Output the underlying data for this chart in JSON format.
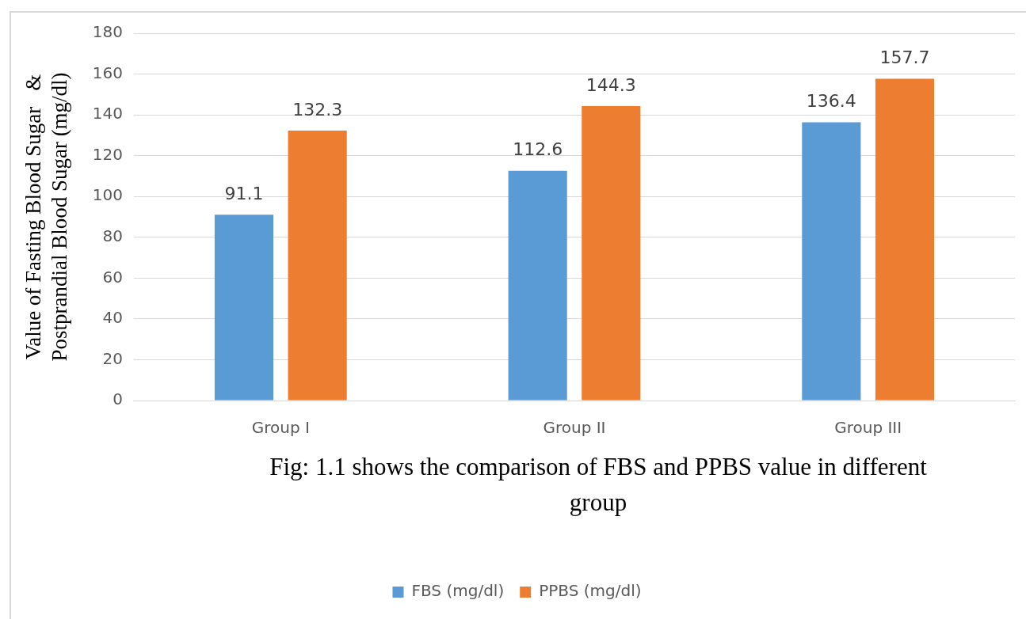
{
  "chart_data": {
    "type": "bar",
    "ylabel": "Value of Fasting Blood Sugar   &\nPostprandial Blood Sugar (mg/dl)",
    "categories": [
      "Group I",
      "Group II",
      "Group III"
    ],
    "series": [
      {
        "name": "FBS (mg/dl)",
        "color": "#5b9bd5",
        "values": [
          91.1,
          112.6,
          136.4
        ]
      },
      {
        "name": "PPBS (mg/dl)",
        "color": "#ed7d31",
        "values": [
          132.3,
          144.3,
          157.7
        ]
      }
    ],
    "ylim": [
      0,
      180
    ],
    "yticks": [
      0,
      20,
      40,
      60,
      80,
      100,
      120,
      140,
      160,
      180
    ],
    "grid": "y",
    "legend": "bottom",
    "data_labels": true,
    "annotations": [
      "Fig: 1.1 shows the comparison of  FBS and PPBS  value in different group"
    ]
  }
}
